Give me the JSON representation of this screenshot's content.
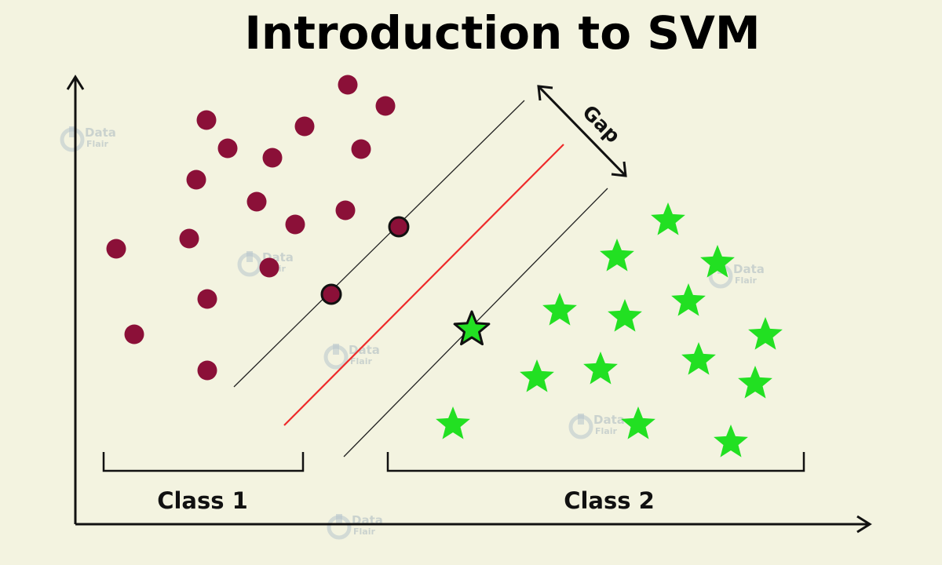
{
  "title": "Introduction to SVM",
  "gap_label": "Gap",
  "classes": [
    {
      "label": "Class 1",
      "color": "#8b1038"
    },
    {
      "label": "Class 2",
      "color": "#22e022"
    }
  ],
  "colors": {
    "background": "#f3f3e0",
    "hyperplane": "#ee2a2a",
    "margin_lines": "#111111",
    "axes": "#111111",
    "circle_fill": "#8b1038",
    "star_fill": "#22e022"
  },
  "watermark": {
    "line1": "Data",
    "line2": "Flair"
  },
  "icons": {
    "watermark": "dataflair-logo-icon"
  }
}
